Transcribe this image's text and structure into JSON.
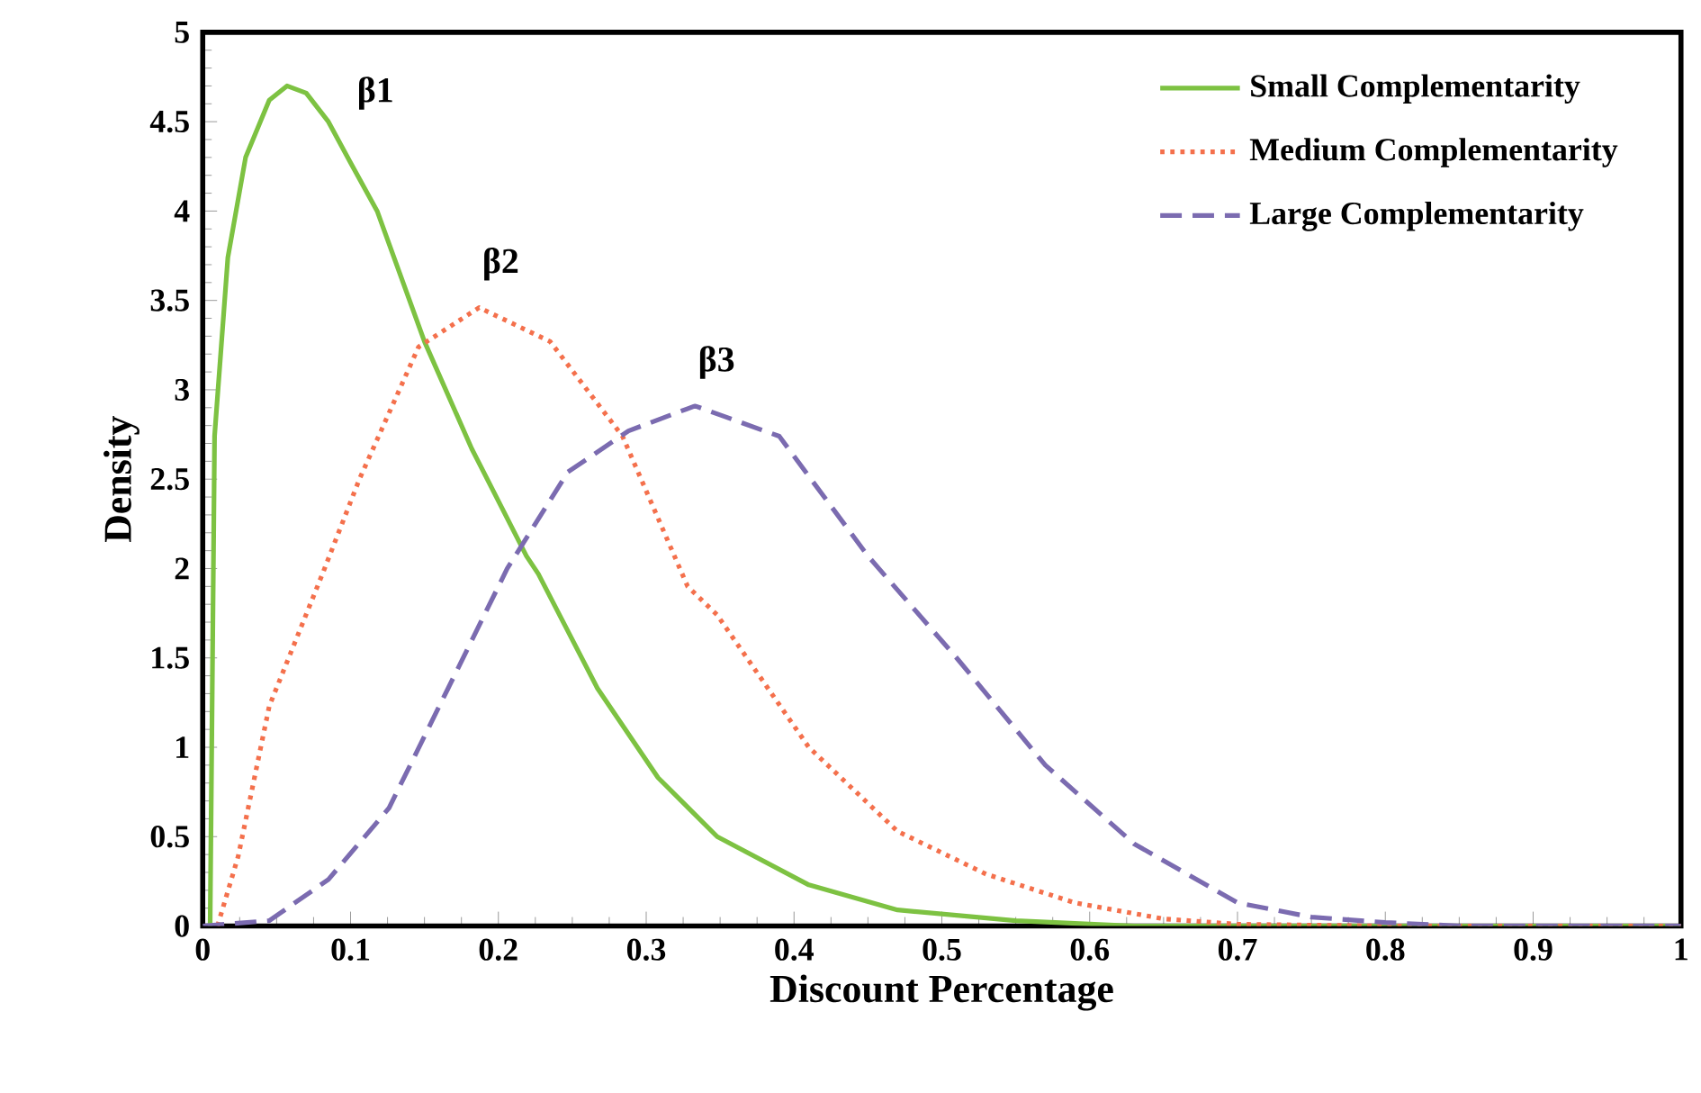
{
  "chart_data": {
    "type": "line",
    "xlabel": "Discount Percentage",
    "ylabel": "Density",
    "xlim": [
      0,
      1
    ],
    "ylim": [
      0,
      5
    ],
    "xticks": [
      0,
      0.1,
      0.2,
      0.3,
      0.4,
      0.5,
      0.6,
      0.7,
      0.8,
      0.9,
      1
    ],
    "yticks": [
      0,
      0.5,
      1,
      1.5,
      2,
      2.5,
      3,
      3.5,
      4,
      4.5,
      5
    ],
    "legend": "top right",
    "grid": false,
    "marker": "none",
    "annotations": [
      "β1",
      "β2",
      "β3"
    ],
    "series": [
      {
        "name": "Small Complementarity",
        "color": "#7dc242",
        "line_style": "solid",
        "x": [
          0.005,
          0.008,
          0.017,
          0.029,
          0.045,
          0.057,
          0.07,
          0.085,
          0.1,
          0.118,
          0.15,
          0.182,
          0.219,
          0.227,
          0.267,
          0.308,
          0.348,
          0.41,
          0.47,
          0.55,
          0.63,
          0.8,
          1
        ],
        "values": [
          0,
          2.74,
          3.74,
          4.3,
          4.62,
          4.7,
          4.66,
          4.5,
          4.27,
          4.0,
          3.27,
          2.67,
          2.07,
          1.97,
          1.33,
          0.83,
          0.5,
          0.23,
          0.09,
          0.03,
          0,
          0,
          0
        ]
      },
      {
        "name": "Medium Complementarity",
        "color": "#f4704c",
        "line_style": "dotted",
        "x": [
          0.01,
          0.024,
          0.045,
          0.081,
          0.106,
          0.146,
          0.187,
          0.235,
          0.284,
          0.328,
          0.348,
          0.41,
          0.47,
          0.53,
          0.59,
          0.65,
          0.7,
          0.8,
          1
        ],
        "values": [
          0,
          0.39,
          1.23,
          1.97,
          2.5,
          3.24,
          3.46,
          3.27,
          2.74,
          1.9,
          1.74,
          1.0,
          0.53,
          0.29,
          0.13,
          0.04,
          0.01,
          0,
          0
        ]
      },
      {
        "name": "Large Complementarity",
        "color": "#7b6bb0",
        "line_style": "dashed",
        "x": [
          0,
          0.045,
          0.085,
          0.126,
          0.166,
          0.206,
          0.247,
          0.288,
          0.333,
          0.39,
          0.45,
          0.51,
          0.57,
          0.63,
          0.7,
          0.75,
          0.8,
          0.85,
          1
        ],
        "values": [
          0,
          0.03,
          0.26,
          0.66,
          1.33,
          2.0,
          2.54,
          2.77,
          2.91,
          2.74,
          2.07,
          1.5,
          0.9,
          0.46,
          0.13,
          0.05,
          0.02,
          0,
          0
        ]
      }
    ]
  }
}
